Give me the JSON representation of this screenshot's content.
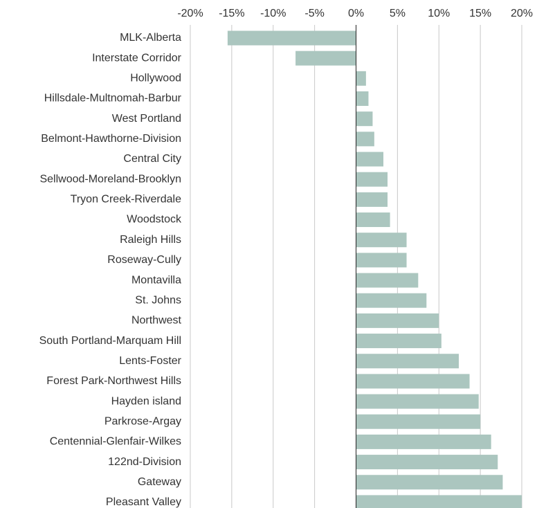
{
  "chart_data": {
    "type": "bar",
    "orientation": "horizontal",
    "categories": [
      "MLK-Alberta",
      "Interstate Corridor",
      "Hollywood",
      "Hillsdale-Multnomah-Barbur",
      "West Portland",
      "Belmont-Hawthorne-Division",
      "Central City",
      "Sellwood-Moreland-Brooklyn",
      "Tryon Creek-Riverdale",
      "Woodstock",
      "Raleigh Hills",
      "Roseway-Cully",
      "Montavilla",
      "St. Johns",
      "Northwest",
      "South Portland-Marquam Hill",
      "Lents-Foster",
      "Forest Park-Northwest Hills",
      "Hayden island",
      "Parkrose-Argay",
      "Centennial-Glenfair-Wilkes",
      "122nd-Division",
      "Gateway",
      "Pleasant Valley"
    ],
    "values": [
      -15.5,
      -7.3,
      1.2,
      1.5,
      2.0,
      2.2,
      3.3,
      3.8,
      3.8,
      4.1,
      6.1,
      6.1,
      7.5,
      8.5,
      10.0,
      10.3,
      12.4,
      13.7,
      14.8,
      15.0,
      16.3,
      17.1,
      17.7,
      20.0
    ],
    "color": "#abc6bf",
    "xlim": [
      -20,
      20
    ],
    "xticks": [
      {
        "value": -20,
        "label": "-20%"
      },
      {
        "value": -15,
        "label": "-15%"
      },
      {
        "value": -10,
        "label": "-10%"
      },
      {
        "value": -5,
        "label": "-5%"
      },
      {
        "value": 0,
        "label": "0%"
      },
      {
        "value": 5,
        "label": "5%"
      },
      {
        "value": 10,
        "label": "10%"
      },
      {
        "value": 15,
        "label": "15%"
      },
      {
        "value": 20,
        "label": "20%"
      }
    ],
    "grid": true
  }
}
